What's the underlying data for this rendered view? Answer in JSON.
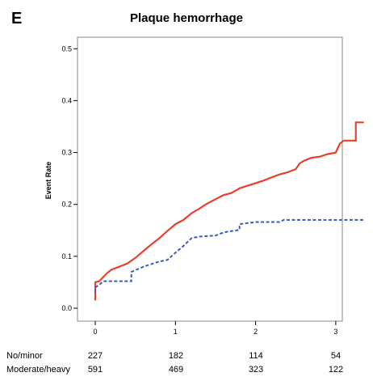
{
  "panel_label": "E",
  "chart_data": {
    "type": "line",
    "title": "Plaque hemorrhage",
    "xlabel": "",
    "ylabel": "Event Rate",
    "xlim": [
      0,
      3.35
    ],
    "ylim": [
      0,
      0.5
    ],
    "x_ticks": [
      "0",
      "1",
      "2",
      "3"
    ],
    "y_ticks": [
      "0.0",
      "0.1",
      "0.2",
      "0.3",
      "0.4",
      "0.5"
    ],
    "grid": false,
    "series": [
      {
        "color": "#e8402f",
        "style": "solid",
        "points": [
          [
            0,
            0.015
          ],
          [
            0,
            0.05
          ],
          [
            0.05,
            0.052
          ],
          [
            0.1,
            0.06
          ],
          [
            0.15,
            0.068
          ],
          [
            0.2,
            0.074
          ],
          [
            0.3,
            0.08
          ],
          [
            0.4,
            0.086
          ],
          [
            0.5,
            0.097
          ],
          [
            0.6,
            0.11
          ],
          [
            0.7,
            0.123
          ],
          [
            0.8,
            0.135
          ],
          [
            0.9,
            0.149
          ],
          [
            1.0,
            0.162
          ],
          [
            1.1,
            0.17
          ],
          [
            1.2,
            0.183
          ],
          [
            1.3,
            0.192
          ],
          [
            1.4,
            0.202
          ],
          [
            1.5,
            0.21
          ],
          [
            1.6,
            0.218
          ],
          [
            1.7,
            0.222
          ],
          [
            1.8,
            0.231
          ],
          [
            1.9,
            0.236
          ],
          [
            2.0,
            0.241
          ],
          [
            2.1,
            0.246
          ],
          [
            2.2,
            0.252
          ],
          [
            2.3,
            0.258
          ],
          [
            2.4,
            0.262
          ],
          [
            2.5,
            0.268
          ],
          [
            2.55,
            0.279
          ],
          [
            2.6,
            0.284
          ],
          [
            2.7,
            0.29
          ],
          [
            2.8,
            0.292
          ],
          [
            2.9,
            0.297
          ],
          [
            3.0,
            0.3
          ],
          [
            3.05,
            0.317
          ],
          [
            3.1,
            0.323
          ],
          [
            3.25,
            0.323
          ],
          [
            3.25,
            0.358
          ],
          [
            3.35,
            0.358
          ]
        ]
      },
      {
        "color": "#3a5bbf",
        "style": "dashed",
        "points": [
          [
            0,
            0.03
          ],
          [
            0,
            0.04
          ],
          [
            0.05,
            0.045
          ],
          [
            0.1,
            0.052
          ],
          [
            0.45,
            0.052
          ],
          [
            0.45,
            0.07
          ],
          [
            0.6,
            0.08
          ],
          [
            0.8,
            0.09
          ],
          [
            0.9,
            0.093
          ],
          [
            1.0,
            0.107
          ],
          [
            1.1,
            0.12
          ],
          [
            1.2,
            0.135
          ],
          [
            1.3,
            0.138
          ],
          [
            1.5,
            0.14
          ],
          [
            1.6,
            0.146
          ],
          [
            1.8,
            0.151
          ],
          [
            1.8,
            0.162
          ],
          [
            2.0,
            0.166
          ],
          [
            2.3,
            0.166
          ],
          [
            2.35,
            0.17
          ],
          [
            3.35,
            0.17
          ]
        ]
      }
    ]
  },
  "risk_table": {
    "rows": [
      {
        "label": "No/minor",
        "values": [
          "227",
          "182",
          "114",
          "54"
        ]
      },
      {
        "label": "Moderate/heavy",
        "values": [
          "591",
          "469",
          "323",
          "122"
        ]
      }
    ]
  }
}
